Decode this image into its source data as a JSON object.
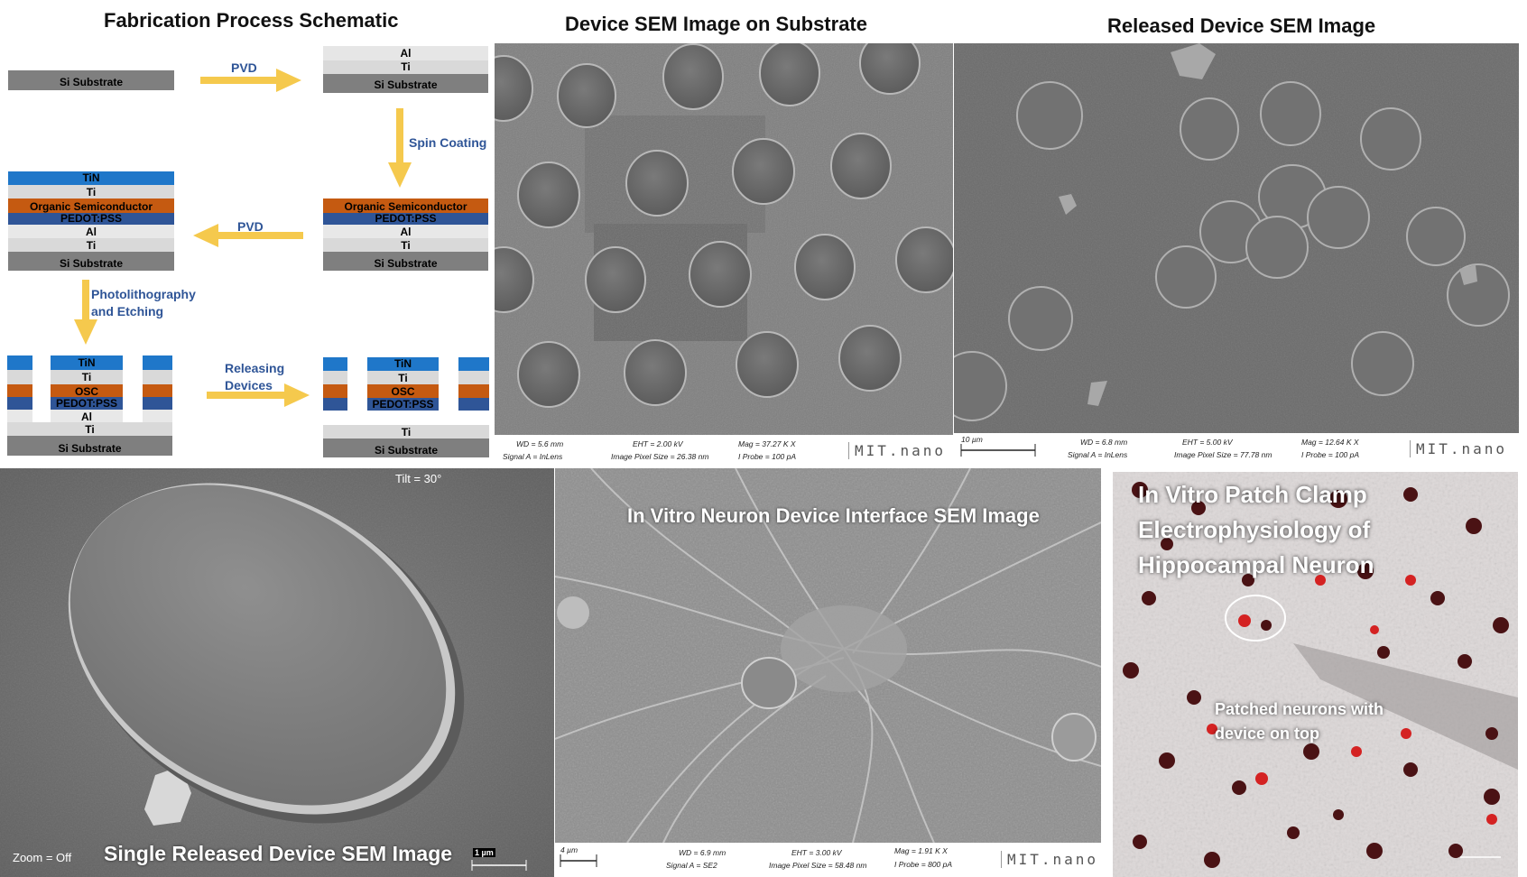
{
  "titles": {
    "fabrication": "Fabrication Process Schematic",
    "substrate": "Device SEM Image on Substrate",
    "released": "Released Device SEM Image"
  },
  "layers": {
    "si": "Si Substrate",
    "ti": "Ti",
    "al": "Al",
    "tin": "TiN",
    "osc_full": "Organic Semiconductor",
    "osc": "OSC",
    "pedot": "PEDOT:PSS"
  },
  "steps": {
    "pvd1": "PVD",
    "spin": "Spin Coating",
    "pvd2": "PVD",
    "photo": [
      "Photolithography",
      "and Etching"
    ],
    "release": [
      "Releasing",
      "Devices"
    ]
  },
  "sem_substrate": {
    "wd": "WD =  5.6 mm",
    "signal": "Signal A = InLens",
    "eht": "EHT =  2.00 kV",
    "pixel": "Image Pixel Size = 26.38 nm",
    "mag": "Mag =  37.27 K X",
    "probe": "I Probe =   100 pA",
    "brand": "MIT.nano"
  },
  "sem_released": {
    "scale": "10 µm",
    "wd": "WD =  6.8 mm",
    "signal": "Signal A = InLens",
    "eht": "EHT =  5.00 kV",
    "pixel": "Image Pixel Size = 77.78 nm",
    "mag": "Mag =  12.64 K X",
    "probe": "I Probe =   100 pA",
    "brand": "MIT.nano"
  },
  "single": {
    "tilt": "Tilt = 30°",
    "zoom": "Zoom = Off",
    "caption": "Single Released Device SEM Image",
    "scale": "1 µm"
  },
  "neuron": {
    "caption": "In Vitro Neuron Device Interface SEM Image",
    "scale": "4 µm",
    "wd": "WD =  6.9 mm",
    "signal": "Signal A = SE2",
    "eht": "EHT =  3.00 kV",
    "pixel": "Image Pixel Size = 58.48 nm",
    "mag": "Mag =   1.91 K X",
    "probe": "I Probe =   800 pA",
    "brand": "MIT.nano"
  },
  "patch": {
    "title_lines": [
      "In Vitro Patch Clamp",
      "Electrophysiology of",
      "Hippocampal Neuron"
    ],
    "annotation_lines": [
      "Patched neurons with",
      "device on top"
    ]
  },
  "colors": {
    "arrow": "#f5c94d",
    "tin": "#1f77c9",
    "pedot": "#2f5597",
    "osc": "#c55a11",
    "substrate": "#7f7f7f",
    "step_text": "#2f5597"
  }
}
